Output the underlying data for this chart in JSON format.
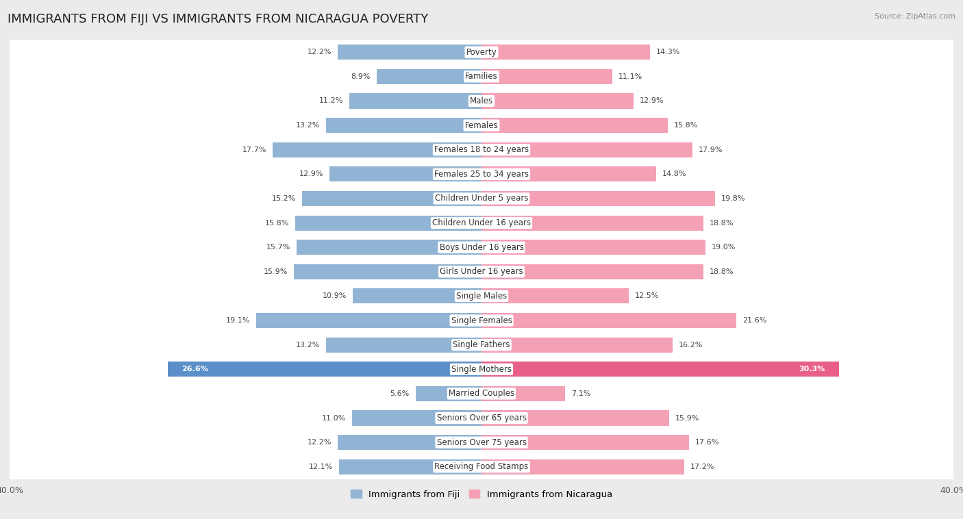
{
  "title": "IMMIGRANTS FROM FIJI VS IMMIGRANTS FROM NICARAGUA POVERTY",
  "source": "Source: ZipAtlas.com",
  "categories": [
    "Poverty",
    "Families",
    "Males",
    "Females",
    "Females 18 to 24 years",
    "Females 25 to 34 years",
    "Children Under 5 years",
    "Children Under 16 years",
    "Boys Under 16 years",
    "Girls Under 16 years",
    "Single Males",
    "Single Females",
    "Single Fathers",
    "Single Mothers",
    "Married Couples",
    "Seniors Over 65 years",
    "Seniors Over 75 years",
    "Receiving Food Stamps"
  ],
  "fiji_values": [
    12.2,
    8.9,
    11.2,
    13.2,
    17.7,
    12.9,
    15.2,
    15.8,
    15.7,
    15.9,
    10.9,
    19.1,
    13.2,
    26.6,
    5.6,
    11.0,
    12.2,
    12.1
  ],
  "nicaragua_values": [
    14.3,
    11.1,
    12.9,
    15.8,
    17.9,
    14.8,
    19.8,
    18.8,
    19.0,
    18.8,
    12.5,
    21.6,
    16.2,
    30.3,
    7.1,
    15.9,
    17.6,
    17.2
  ],
  "fiji_color": "#92b4d4",
  "nicaragua_color": "#f4a0b5",
  "fiji_label": "Immigrants from Fiji",
  "nicaragua_label": "Immigrants from Nicaragua",
  "xlim": 40.0,
  "bar_height": 0.62,
  "background_color": "#ebebeb",
  "row_bg_color": "#ffffff",
  "title_fontsize": 13,
  "label_fontsize": 8.5,
  "value_fontsize": 8,
  "highlight_category": "Single Mothers",
  "highlight_fiji_color": "#5b8fc9",
  "highlight_nicaragua_color": "#e8608a"
}
